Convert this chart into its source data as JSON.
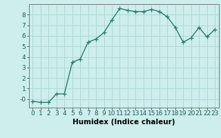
{
  "x": [
    0,
    1,
    2,
    3,
    4,
    5,
    6,
    7,
    8,
    9,
    10,
    11,
    12,
    13,
    14,
    15,
    16,
    17,
    18,
    19,
    20,
    21,
    22,
    23
  ],
  "y": [
    -0.2,
    -0.3,
    -0.3,
    0.5,
    0.5,
    3.5,
    3.8,
    5.4,
    5.7,
    6.3,
    7.5,
    8.6,
    8.4,
    8.3,
    8.3,
    8.5,
    8.3,
    7.8,
    6.8,
    5.4,
    5.8,
    6.8,
    5.9,
    6.6
  ],
  "line_color": "#2a7a6a",
  "marker": "+",
  "marker_size": 4,
  "bg_color": "#cdeeed",
  "grid_color": "#aed8d4",
  "xlabel": "Humidex (Indice chaleur)",
  "xlim": [
    -0.5,
    23.5
  ],
  "ylim": [
    -0.8,
    9.0
  ],
  "yticks": [
    0,
    1,
    2,
    3,
    4,
    5,
    6,
    7,
    8
  ],
  "ytick_labels": [
    "-0",
    "1",
    "2",
    "3",
    "4",
    "5",
    "6",
    "7",
    "8"
  ],
  "xticks": [
    0,
    1,
    2,
    3,
    4,
    5,
    6,
    7,
    8,
    9,
    10,
    11,
    12,
    13,
    14,
    15,
    16,
    17,
    18,
    19,
    20,
    21,
    22,
    23
  ],
  "line_width": 1.0,
  "tick_fontsize": 6.5,
  "xlabel_fontsize": 7.5
}
